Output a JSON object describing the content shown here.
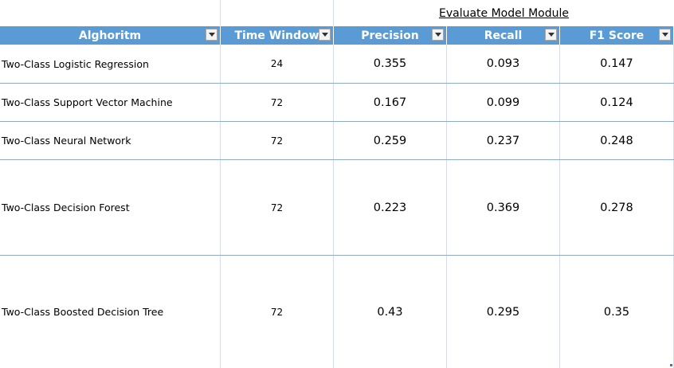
{
  "title": "Evaluate Model Module",
  "headers": [
    "Alghoritm",
    "Time Window",
    "Precision",
    "Recall",
    "F1 Score"
  ],
  "rows": [
    {
      "algorithm": "Two-Class Logistic Regression",
      "time_window": "24",
      "precision": "0.355",
      "recall": "0.093",
      "f1": "0.147"
    },
    {
      "algorithm": "Two-Class Support Vector Machine",
      "time_window": "72",
      "precision": "0.167",
      "recall": "0.099",
      "f1": "0.124"
    },
    {
      "algorithm": "Two-Class Neural Network",
      "time_window": "72",
      "precision": "0.259",
      "recall": "0.237",
      "f1": "0.248"
    },
    {
      "algorithm": "Two-Class Decision Forest",
      "time_window": "72",
      "precision": "0.223",
      "recall": "0.369",
      "f1": "0.278"
    },
    {
      "algorithm": "Two-Class Boosted Decision Tree",
      "time_window": "72",
      "precision": "0.43",
      "recall": "0.295",
      "f1": "0.35"
    }
  ],
  "colors": {
    "header_bg": "#5b9bd5",
    "header_text": "#ffffff",
    "row_border": "#8ea9c9"
  }
}
